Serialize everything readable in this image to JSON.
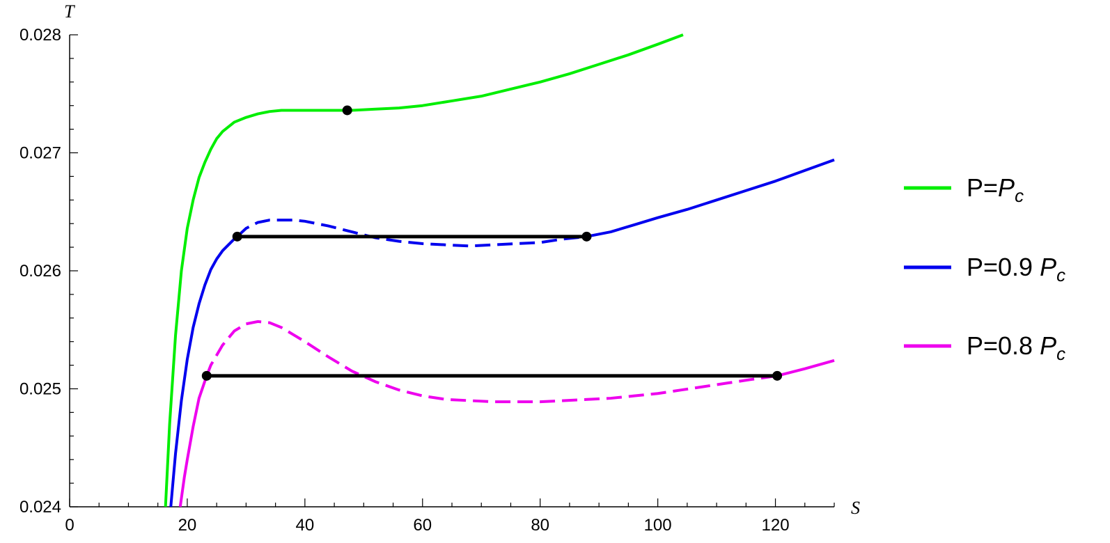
{
  "chart_data": {
    "type": "line",
    "xlabel": "S",
    "ylabel": "T",
    "xlim": [
      0,
      130
    ],
    "ylim": [
      0.024,
      0.028
    ],
    "x_ticks": [
      0,
      20,
      40,
      60,
      80,
      100,
      120
    ],
    "x_tick_labels": [
      "0",
      "20",
      "40",
      "60",
      "80",
      "100",
      "120"
    ],
    "y_ticks": [
      0.024,
      0.025,
      0.026,
      0.027,
      0.028
    ],
    "y_tick_labels": [
      "0.024",
      "0.025",
      "0.026",
      "0.027",
      "0.028"
    ],
    "grid": false,
    "legend_position": "right",
    "series": [
      {
        "name": "P=P_c",
        "legend_prefix": "P=",
        "legend_italic": "P",
        "legend_sub": "c",
        "color": "#00ee00",
        "critical_point": [
          47.2,
          0.02736
        ],
        "x": [
          16.3,
          17,
          18,
          19,
          20,
          21,
          22,
          23,
          24,
          25,
          26,
          28,
          30,
          32,
          34,
          36,
          38,
          40,
          42,
          45,
          48,
          52,
          56,
          60,
          65,
          70,
          75,
          80,
          85,
          90,
          95,
          100,
          104.3
        ],
        "y": [
          0.024,
          0.0247,
          0.02545,
          0.026,
          0.02636,
          0.0266,
          0.02679,
          0.02692,
          0.02703,
          0.02712,
          0.02718,
          0.02726,
          0.0273,
          0.02733,
          0.02735,
          0.02736,
          0.02736,
          0.02736,
          0.02736,
          0.02736,
          0.02736,
          0.02737,
          0.02738,
          0.0274,
          0.02744,
          0.02748,
          0.02754,
          0.0276,
          0.02767,
          0.02775,
          0.02783,
          0.02792,
          0.028
        ]
      },
      {
        "name": "P=0.9 P_c",
        "legend_prefix": "P=0.9 ",
        "legend_italic": "P",
        "legend_sub": "c",
        "color": "#0000ee",
        "equal_area_T": 0.02629,
        "equal_area_x": [
          28.5,
          87.9
        ],
        "x": [
          17.2,
          18,
          19,
          20,
          21,
          22,
          23,
          24,
          25,
          26,
          27,
          28,
          28.5,
          30,
          32,
          34,
          36,
          38,
          40,
          44,
          48,
          52,
          56,
          60,
          64,
          68,
          72,
          76,
          80,
          84,
          87.9,
          92,
          96,
          100,
          105,
          110,
          115,
          120,
          125,
          130
        ],
        "y": [
          0.024,
          0.02445,
          0.0249,
          0.02525,
          0.02552,
          0.02572,
          0.02588,
          0.02601,
          0.0261,
          0.02617,
          0.02622,
          0.02627,
          0.02629,
          0.02636,
          0.02641,
          0.02643,
          0.02643,
          0.02643,
          0.02642,
          0.02638,
          0.02633,
          0.02628,
          0.02625,
          0.02623,
          0.02622,
          0.02621,
          0.02622,
          0.02623,
          0.02624,
          0.02627,
          0.02629,
          0.02633,
          0.02639,
          0.02645,
          0.02652,
          0.0266,
          0.02668,
          0.02676,
          0.02685,
          0.02694
        ]
      },
      {
        "name": "P=0.8 P_c",
        "legend_prefix": "P=0.8 ",
        "legend_italic": "P",
        "legend_sub": "c",
        "color": "#ee00ee",
        "equal_area_T": 0.02511,
        "equal_area_x": [
          23.3,
          120.3
        ],
        "x": [
          18.8,
          19.5,
          20,
          21,
          22,
          23.3,
          24,
          26,
          28,
          30,
          32,
          34,
          36,
          38,
          40,
          44,
          48,
          52,
          56,
          60,
          64,
          68,
          72,
          76,
          80,
          84,
          88,
          92,
          96,
          100,
          104,
          108,
          112,
          116,
          120.3,
          125,
          130
        ],
        "y": [
          0.024,
          0.02425,
          0.0244,
          0.02468,
          0.02492,
          0.02511,
          0.0252,
          0.02537,
          0.02549,
          0.02555,
          0.02557,
          0.02556,
          0.02552,
          0.02546,
          0.0254,
          0.02527,
          0.02515,
          0.02506,
          0.02499,
          0.02494,
          0.02491,
          0.0249,
          0.02489,
          0.02489,
          0.02489,
          0.0249,
          0.02491,
          0.02492,
          0.02494,
          0.02496,
          0.02499,
          0.02502,
          0.02505,
          0.02508,
          0.02511,
          0.02517,
          0.02524
        ]
      }
    ]
  }
}
